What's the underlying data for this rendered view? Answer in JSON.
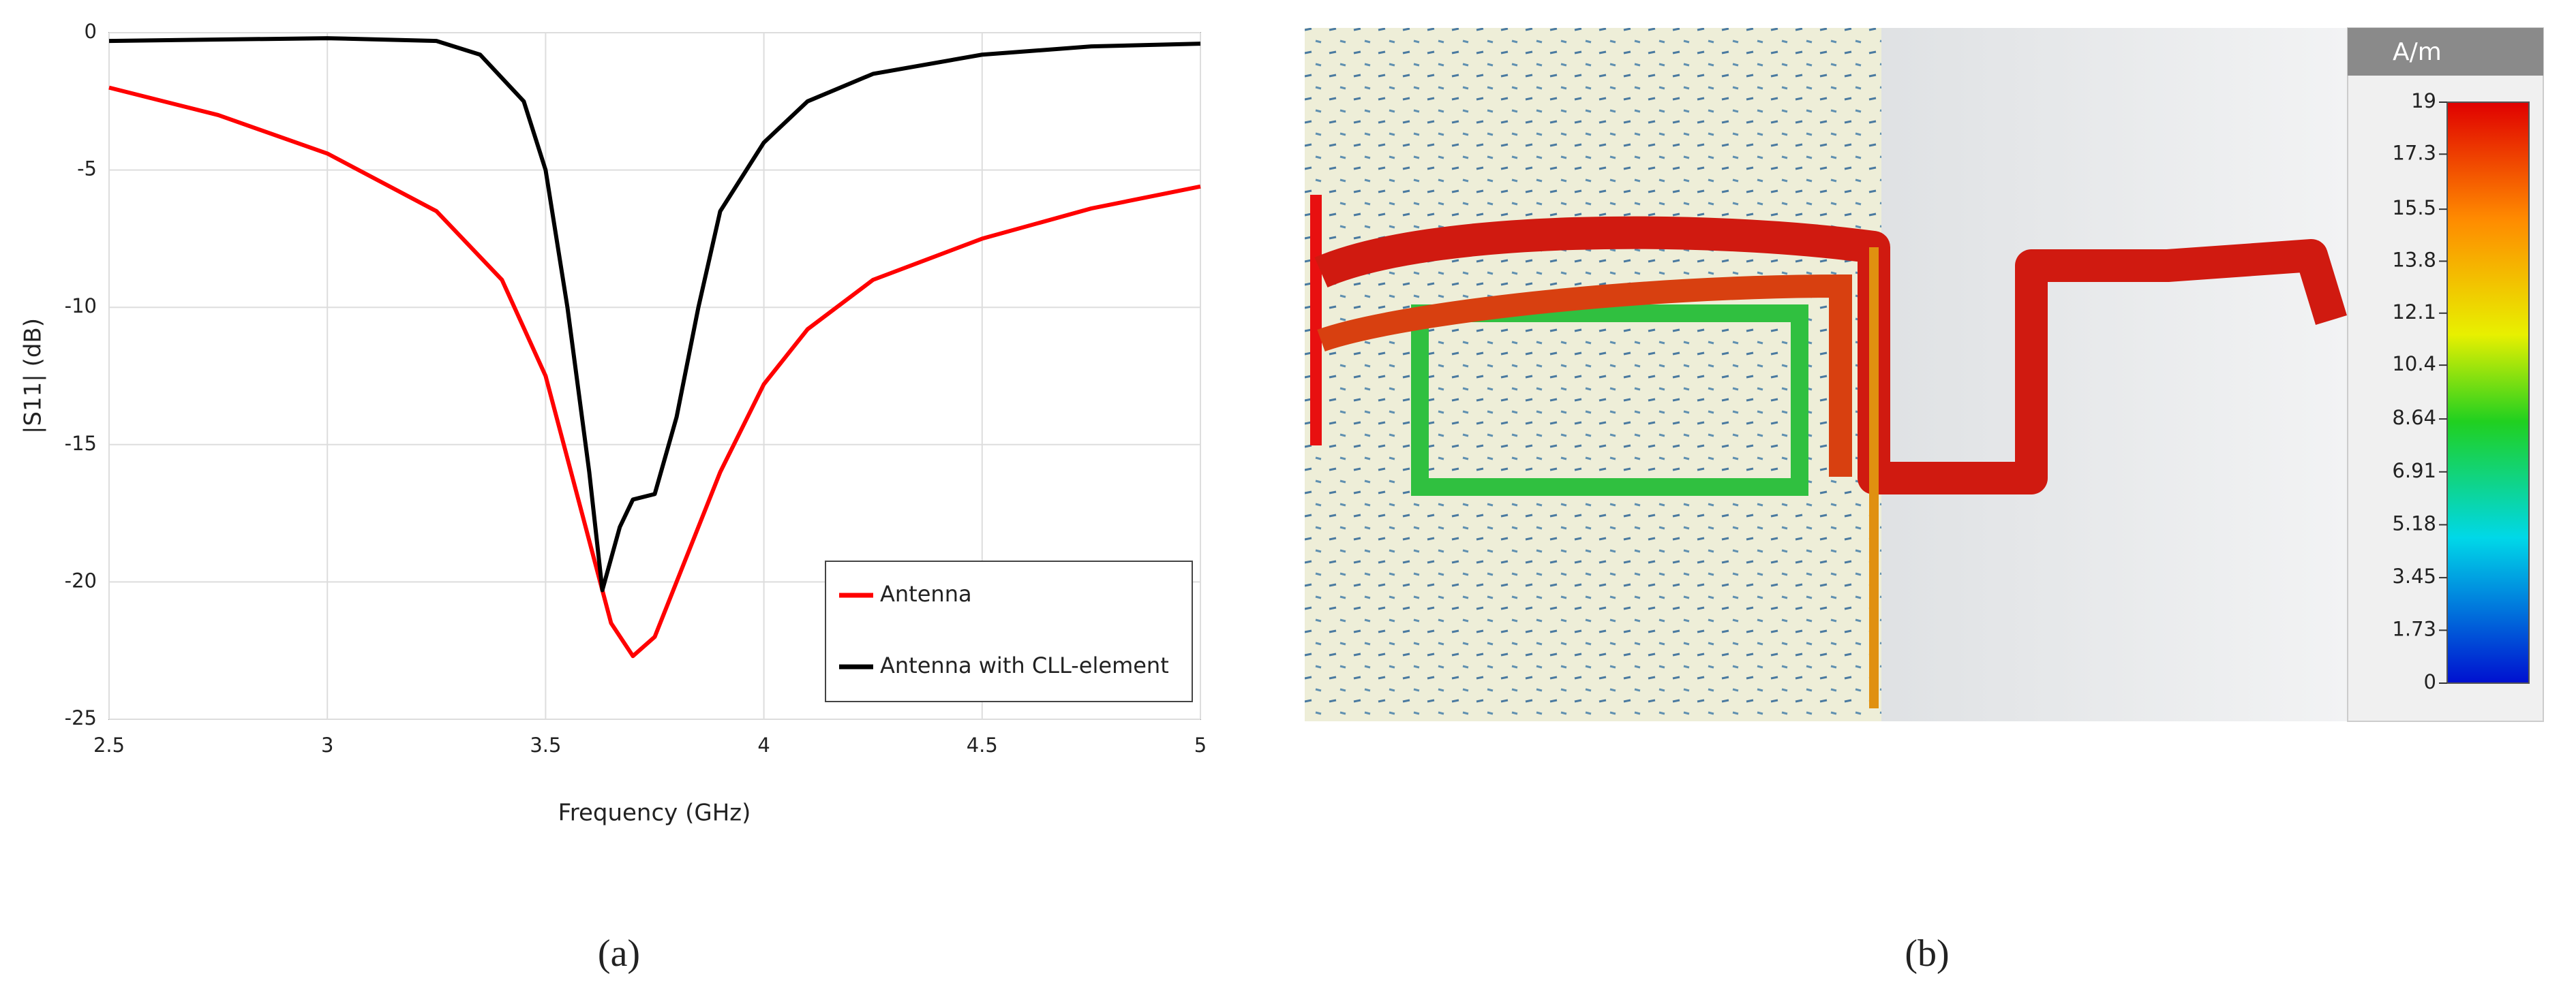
{
  "chart_data": [
    {
      "type": "line",
      "x_label": "Frequency (GHz)",
      "y_label": "|S11| (dB)",
      "xlim": [
        2.5,
        5
      ],
      "xticks": [
        2.5,
        3,
        3.5,
        4,
        4.5,
        5
      ],
      "ylim": [
        -25,
        0
      ],
      "yticks": [
        0,
        -5,
        -10,
        -15,
        -20,
        -25
      ],
      "grid": true,
      "legend": "lower right",
      "series": [
        {
          "name": "Antenna",
          "color": "#ff0000",
          "x": [
            2.5,
            2.75,
            3,
            3.25,
            3.4,
            3.5,
            3.6,
            3.65,
            3.7,
            3.75,
            3.8,
            3.9,
            4,
            4.1,
            4.25,
            4.5,
            4.75,
            5
          ],
          "values": [
            -2,
            -3,
            -4.4,
            -6.5,
            -9,
            -12.5,
            -18.5,
            -21.5,
            -22.7,
            -22,
            -20,
            -16,
            -12.8,
            -10.8,
            -9,
            -7.5,
            -6.4,
            -5.6
          ]
        },
        {
          "name": "Antenna with CLL-element",
          "color": "#000000",
          "x": [
            2.5,
            3,
            3.25,
            3.35,
            3.45,
            3.5,
            3.55,
            3.6,
            3.63,
            3.67,
            3.7,
            3.75,
            3.8,
            3.85,
            3.9,
            4,
            4.1,
            4.25,
            4.5,
            4.75,
            5
          ],
          "values": [
            -0.3,
            -0.2,
            -0.3,
            -0.8,
            -2.5,
            -5,
            -10,
            -16,
            -20.3,
            -18,
            -17,
            -16.8,
            -14,
            -10,
            -6.5,
            -4,
            -2.5,
            -1.5,
            -0.8,
            -0.5,
            -0.4
          ]
        }
      ],
      "caption": "(a)"
    },
    {
      "type": "colorbar",
      "title": "A/m",
      "lim": [
        0,
        19
      ],
      "ticks": [
        19,
        17.3,
        15.5,
        13.8,
        12.1,
        10.4,
        8.64,
        6.91,
        5.18,
        3.45,
        1.73,
        0
      ],
      "caption": "(b)"
    }
  ]
}
